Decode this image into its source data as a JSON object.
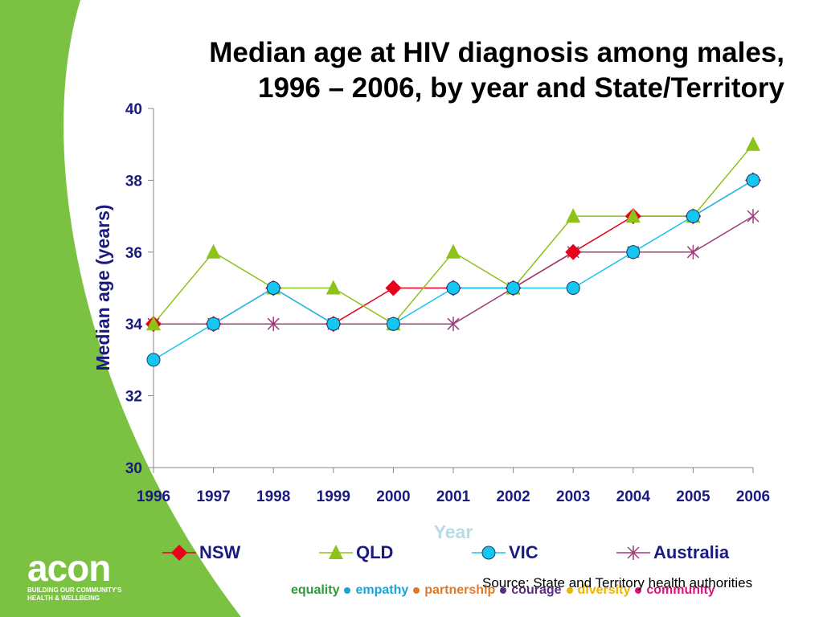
{
  "title": {
    "line1": "Median age at HIV diagnosis among males,",
    "line2": "1996 – 2006, by year and State/Territory"
  },
  "chart_data": {
    "type": "line",
    "x": [
      "1996",
      "1997",
      "1998",
      "1999",
      "2000",
      "2001",
      "2002",
      "2003",
      "2004",
      "2005",
      "2006"
    ],
    "xlabel": "Year",
    "ylabel": "Median age (years)",
    "ylim": [
      30,
      40
    ],
    "yticks": [
      30,
      32,
      34,
      36,
      38,
      40
    ],
    "grid": false,
    "legend_position": "bottom",
    "series": [
      {
        "name": "NSW",
        "color": "#e8001c",
        "marker": "diamond",
        "values": [
          34,
          34,
          35,
          34,
          35,
          35,
          35,
          36,
          37,
          37,
          38
        ]
      },
      {
        "name": "QLD",
        "color": "#8cc21a",
        "marker": "triangle",
        "values": [
          34,
          36,
          35,
          35,
          34,
          36,
          35,
          37,
          37,
          37,
          39
        ]
      },
      {
        "name": "VIC",
        "color": "#14c6f0",
        "marker": "circle",
        "values": [
          33,
          34,
          35,
          34,
          34,
          35,
          35,
          35,
          36,
          37,
          38
        ]
      },
      {
        "name": "Australia",
        "color": "#9c3c78",
        "marker": "asterisk",
        "values": [
          34,
          34,
          34,
          34,
          34,
          34,
          35,
          36,
          36,
          36,
          37
        ]
      }
    ]
  },
  "source": "Source: State and Territory health authorities",
  "logo": {
    "name": "acon",
    "tagline_line1": "BUILDING OUR COMMUNITY'S",
    "tagline_line2": "HEALTH & WELLBEING"
  },
  "values_bar": [
    {
      "word": "equality",
      "color": "#2e9a3a"
    },
    {
      "word": "empathy",
      "color": "#1aa3d9"
    },
    {
      "word": "partnership",
      "color": "#e07a2a"
    },
    {
      "word": "courage",
      "color": "#5a2d82"
    },
    {
      "word": "diversity",
      "color": "#f0b400"
    },
    {
      "word": "community",
      "color": "#d6157a"
    }
  ],
  "colors": {
    "brand_green": "#7cc242",
    "axis_text": "#1a1a80",
    "xlabel_color": "#b5dde8"
  }
}
